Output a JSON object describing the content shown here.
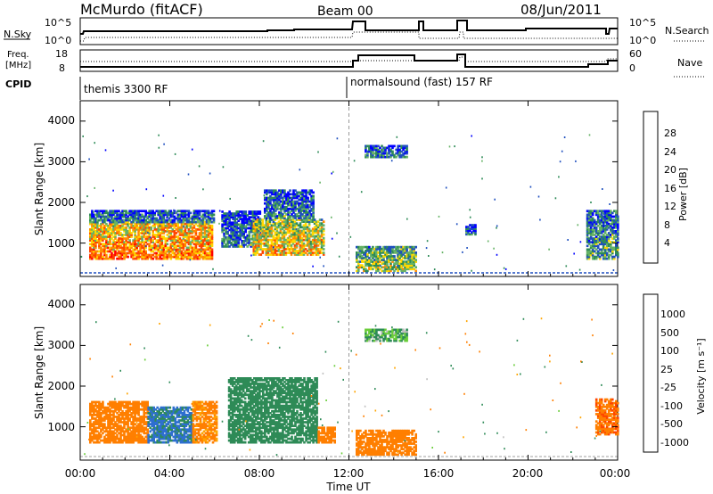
{
  "header": {
    "title": "McMurdo (fitACF)",
    "beam": "Beam 00",
    "date": "08/Jun/2011"
  },
  "summary": {
    "nsky_label": "N.Sky",
    "nsearch_label": "N.Search",
    "nsky_ticks": [
      "10^5",
      "10^0"
    ],
    "nsearch_ticks": [
      "10^5",
      "10^0"
    ],
    "freq_label_1": "Freq.",
    "freq_label_2": "[MHz]",
    "freq_ticks": [
      "18",
      "8"
    ],
    "nave_label": "Nave",
    "nave_ticks": [
      "60",
      "0"
    ],
    "cpid_label": "CPID",
    "cpid_1": "themis 3300 RF",
    "cpid_2": "normalsound (fast) 157 RF"
  },
  "axes": {
    "ylabel": "Slant Range [km]",
    "yticks": [
      "4000",
      "3000",
      "2000",
      "1000"
    ],
    "xticks": [
      "00:00",
      "04:00",
      "08:00",
      "12:00",
      "16:00",
      "20:00",
      "00:00"
    ],
    "xlabel": "Time UT"
  },
  "colorbars": {
    "power": {
      "label": "Power [dB]",
      "ticks": [
        "28",
        "24",
        "20",
        "16",
        "12",
        "8",
        "4"
      ],
      "colors": [
        "#0000ff",
        "#1f4fbf",
        "#2e8b57",
        "#66b266",
        "#ffd700",
        "#ff8c00",
        "#ff4500",
        "#ff0000"
      ]
    },
    "velocity": {
      "label": "Velocity [m s⁻¹]",
      "ticks": [
        "1000",
        "500",
        "100",
        "25",
        "-25",
        "-100",
        "-500",
        "-1000"
      ],
      "colors": [
        "#1f3fbf",
        "#2e6fd0",
        "#2e8b57",
        "#6acd3a",
        "#bfbfbf",
        "#ffa500",
        "#ff7f00",
        "#ff4500",
        "#ff0000"
      ]
    }
  },
  "chart_data": [
    {
      "type": "heatmap",
      "title": "Power",
      "xlabel": "Time UT",
      "ylabel": "Slant Range [km]",
      "xlim_hours": [
        0,
        24
      ],
      "ylim_km": [
        180,
        4500
      ],
      "colorbar_label": "Power [dB]",
      "blobs": [
        {
          "t0": 0.4,
          "t1": 5.9,
          "r0": 600,
          "r1": 1500,
          "value": 24
        },
        {
          "t0": 0.4,
          "t1": 6.0,
          "r0": 1500,
          "r1": 1800,
          "value": 10
        },
        {
          "t0": 6.3,
          "t1": 8.0,
          "r0": 900,
          "r1": 1800,
          "value": 10
        },
        {
          "t0": 7.7,
          "t1": 10.9,
          "r0": 700,
          "r1": 1600,
          "value": 20
        },
        {
          "t0": 8.2,
          "t1": 10.4,
          "r0": 1600,
          "r1": 2300,
          "value": 10
        },
        {
          "t0": 12.7,
          "t1": 14.6,
          "r0": 3100,
          "r1": 3400,
          "value": 10
        },
        {
          "t0": 12.3,
          "t1": 15.0,
          "r0": 300,
          "r1": 900,
          "value": 16
        },
        {
          "t0": 17.2,
          "t1": 17.6,
          "r0": 1200,
          "r1": 1450,
          "value": 8
        },
        {
          "t0": 22.6,
          "t1": 24.0,
          "r0": 600,
          "r1": 1800,
          "value": 12
        }
      ]
    },
    {
      "type": "heatmap",
      "title": "Velocity",
      "xlabel": "Time UT",
      "ylabel": "Slant Range [km]",
      "xlim_hours": [
        0,
        24
      ],
      "ylim_km": [
        180,
        4500
      ],
      "colorbar_label": "Velocity [m s⁻¹]",
      "blobs": [
        {
          "t0": 0.4,
          "t1": 3.0,
          "r0": 600,
          "r1": 1600,
          "value": -200
        },
        {
          "t0": 3.0,
          "t1": 5.0,
          "r0": 600,
          "r1": 1500,
          "value": 600
        },
        {
          "t0": 5.0,
          "t1": 6.1,
          "r0": 600,
          "r1": 1600,
          "value": -150
        },
        {
          "t0": 6.6,
          "t1": 10.6,
          "r0": 600,
          "r1": 2200,
          "value": 300
        },
        {
          "t0": 10.6,
          "t1": 11.4,
          "r0": 600,
          "r1": 1000,
          "value": -200
        },
        {
          "t0": 12.7,
          "t1": 14.6,
          "r0": 3100,
          "r1": 3400,
          "value": 100
        },
        {
          "t0": 12.3,
          "t1": 15.0,
          "r0": 300,
          "r1": 900,
          "value": -300
        },
        {
          "t0": 23.0,
          "t1": 24.0,
          "r0": 800,
          "r1": 1700,
          "value": -400
        }
      ]
    }
  ]
}
